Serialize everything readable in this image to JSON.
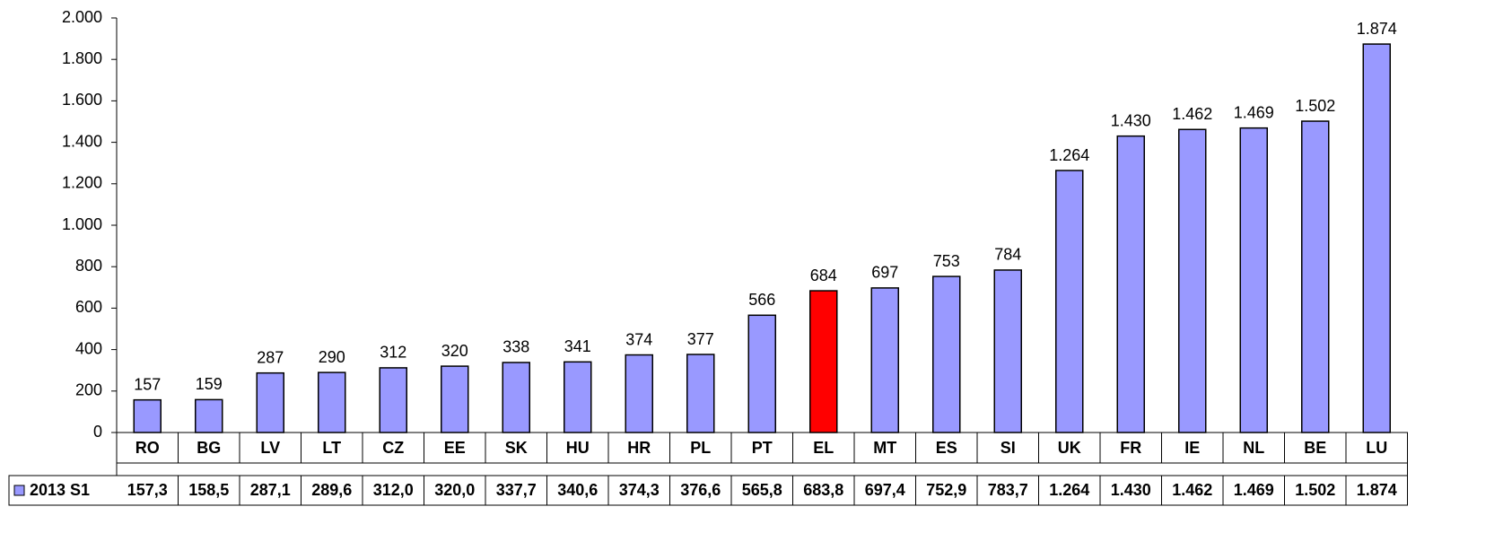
{
  "chart_data": {
    "type": "bar",
    "categories": [
      "RO",
      "BG",
      "LV",
      "LT",
      "CZ",
      "EE",
      "SK",
      "HU",
      "HR",
      "PL",
      "PT",
      "EL",
      "MT",
      "ES",
      "SI",
      "UK",
      "FR",
      "IE",
      "NL",
      "BE",
      "LU"
    ],
    "series": [
      {
        "name": "2013 S1",
        "color": "#9999ff",
        "values": [
          157.3,
          158.5,
          287.1,
          289.6,
          312.0,
          320.0,
          337.7,
          340.6,
          374.3,
          376.6,
          565.8,
          683.8,
          697.4,
          752.9,
          783.7,
          1264,
          1430,
          1462,
          1469,
          1502,
          1874
        ],
        "colors": [
          "#9999ff",
          "#9999ff",
          "#9999ff",
          "#9999ff",
          "#9999ff",
          "#9999ff",
          "#9999ff",
          "#9999ff",
          "#9999ff",
          "#9999ff",
          "#9999ff",
          "#ff0000",
          "#9999ff",
          "#9999ff",
          "#9999ff",
          "#9999ff",
          "#9999ff",
          "#9999ff",
          "#9999ff",
          "#9999ff",
          "#9999ff"
        ],
        "value_labels": [
          "157",
          "159",
          "287",
          "290",
          "312",
          "320",
          "338",
          "341",
          "374",
          "377",
          "566",
          "684",
          "697",
          "753",
          "784",
          "1.264",
          "1.430",
          "1.462",
          "1.469",
          "1.502",
          "1.874"
        ],
        "table_labels": [
          "157,3",
          "158,5",
          "287,1",
          "289,6",
          "312,0",
          "320,0",
          "337,7",
          "340,6",
          "374,3",
          "376,6",
          "565,8",
          "683,8",
          "697,4",
          "752,9",
          "783,7",
          "1.264",
          "1.430",
          "1.462",
          "1.469",
          "1.502",
          "1.874"
        ]
      }
    ],
    "ylim": [
      0,
      2000
    ],
    "yticks": [
      0,
      200,
      400,
      600,
      800,
      {
        "value": 1000,
        "label": "1.000"
      },
      {
        "value": 1200,
        "label": "1.200"
      },
      {
        "value": 1400,
        "label": "1.400"
      },
      {
        "value": 1600,
        "label": "1.600"
      },
      {
        "value": 1800,
        "label": "1.800"
      },
      {
        "value": 2000,
        "label": "2.000"
      }
    ]
  }
}
